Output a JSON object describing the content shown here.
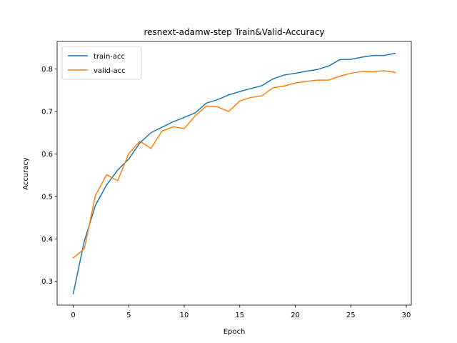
{
  "chart_data": {
    "type": "line",
    "title": "resnext-adamw-step Train&Valid-Accuracy",
    "xlabel": "Epoch",
    "ylabel": "Accuracy",
    "xlim": [
      -1.45,
      30.45
    ],
    "ylim": [
      0.244,
      0.865
    ],
    "xticks": [
      0,
      5,
      10,
      15,
      20,
      25,
      30
    ],
    "yticks": [
      0.3,
      0.4,
      0.5,
      0.6,
      0.7,
      0.8
    ],
    "grid": false,
    "legend_position": "top-left",
    "x": [
      0,
      1,
      2,
      3,
      4,
      5,
      6,
      7,
      8,
      9,
      10,
      11,
      12,
      13,
      14,
      15,
      16,
      17,
      18,
      19,
      20,
      21,
      22,
      23,
      24,
      25,
      26,
      27,
      28,
      29
    ],
    "series": [
      {
        "name": "train-acc",
        "color": "#1f77b4",
        "values": [
          0.271,
          0.395,
          0.479,
          0.527,
          0.562,
          0.588,
          0.626,
          0.65,
          0.663,
          0.676,
          0.686,
          0.697,
          0.72,
          0.728,
          0.739,
          0.747,
          0.754,
          0.761,
          0.777,
          0.786,
          0.79,
          0.795,
          0.799,
          0.807,
          0.822,
          0.823,
          0.828,
          0.832,
          0.832,
          0.837
        ]
      },
      {
        "name": "valid-acc",
        "color": "#ff7f0e",
        "values": [
          0.355,
          0.377,
          0.502,
          0.551,
          0.537,
          0.601,
          0.63,
          0.613,
          0.654,
          0.664,
          0.66,
          0.69,
          0.713,
          0.711,
          0.7,
          0.725,
          0.733,
          0.737,
          0.756,
          0.76,
          0.767,
          0.771,
          0.774,
          0.774,
          0.783,
          0.79,
          0.794,
          0.794,
          0.796,
          0.792
        ]
      }
    ]
  }
}
